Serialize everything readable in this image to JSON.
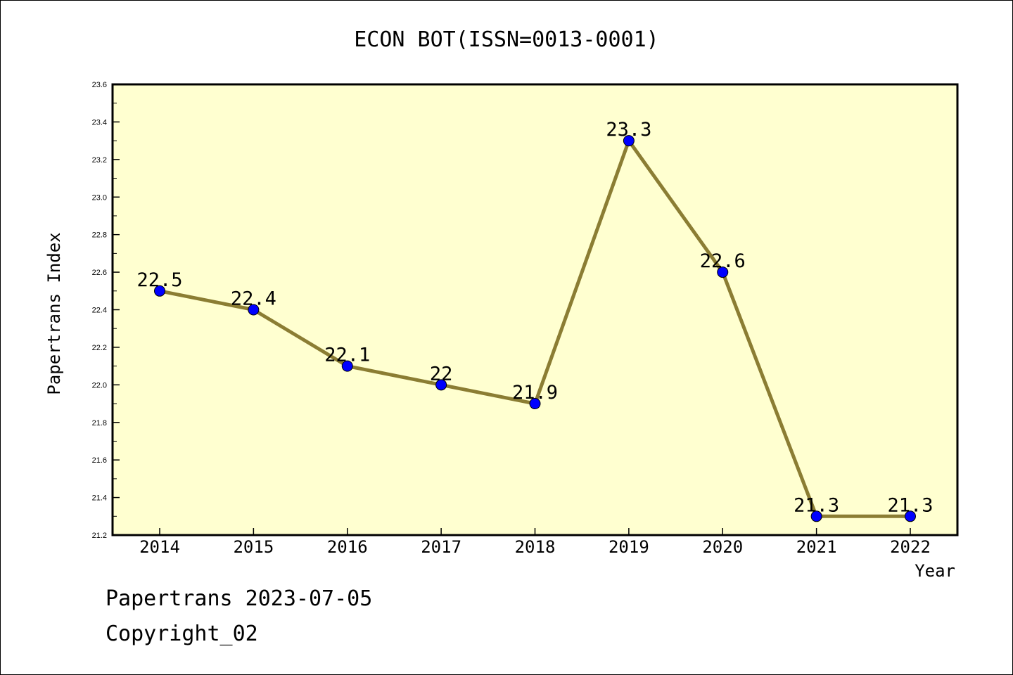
{
  "chart_data": {
    "type": "line",
    "title": "ECON BOT(ISSN=0013-0001)",
    "xlabel": "Year",
    "ylabel": "Papertrans Index",
    "x": [
      "2014",
      "2015",
      "2016",
      "2017",
      "2018",
      "2019",
      "2020",
      "2021",
      "2022"
    ],
    "series": [
      {
        "values": [
          22.5,
          22.4,
          22.1,
          22.0,
          21.9,
          23.3,
          22.6,
          21.3,
          21.3
        ],
        "labels": [
          "22.5",
          "22.4",
          "22.1",
          "22",
          "21.9",
          "23.3",
          "22.6",
          "21.3",
          "21.3"
        ],
        "line_color": "#8b7d33",
        "marker_color": "#0000ff"
      }
    ],
    "ylim": [
      21.2,
      23.6
    ],
    "yticks": [
      "21.2",
      "21.4",
      "21.6",
      "21.8",
      "22.0",
      "22.2",
      "22.4",
      "22.6",
      "22.8",
      "23.0",
      "23.2",
      "23.4",
      "23.6"
    ],
    "grid": false,
    "plot_background": "#ffffd0"
  },
  "footer": {
    "line1": "Papertrans 2023-07-05",
    "line2": "Copyright_02"
  }
}
